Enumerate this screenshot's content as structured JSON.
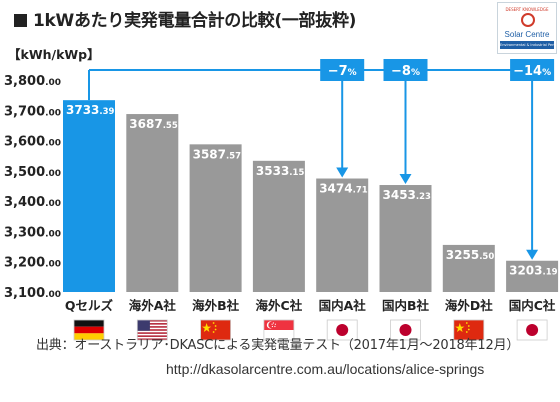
{
  "title": "1kWあたり実発電量合計の比較(一部抜粋)",
  "unit_label": "【kWh/kWp】",
  "logo": {
    "top_text": "DESERT KNOWLEDGE",
    "name": "Solar Centre",
    "sub": "Environmental & Industrial Performance"
  },
  "chart_data": {
    "type": "bar",
    "title": "1kWあたり実発電量合計の比較(一部抜粋)",
    "ylabel": "【kWh/kWp】",
    "xlabel": "",
    "ylim": [
      3100,
      3800
    ],
    "yticks": [
      3100,
      3200,
      3300,
      3400,
      3500,
      3600,
      3700,
      3800
    ],
    "ytick_labels": [
      {
        "int": "3,100",
        "dec": ".00"
      },
      {
        "int": "3,200",
        "dec": ".00"
      },
      {
        "int": "3,300",
        "dec": ".00"
      },
      {
        "int": "3,400",
        "dec": ".00"
      },
      {
        "int": "3,500",
        "dec": ".00"
      },
      {
        "int": "3,600",
        "dec": ".00"
      },
      {
        "int": "3,700",
        "dec": ".00"
      },
      {
        "int": "3,800",
        "dec": ".00"
      }
    ],
    "categories": [
      "Qセルズ",
      "海外A社",
      "海外B社",
      "海外C社",
      "国内A社",
      "国内B社",
      "海外D社",
      "国内C社"
    ],
    "values": [
      3733.39,
      3687.55,
      3587.57,
      3533.15,
      3474.71,
      3453.23,
      3255.5,
      3203.19
    ],
    "value_labels": [
      {
        "int": "3733",
        "dec": ".39"
      },
      {
        "int": "3687",
        "dec": ".55"
      },
      {
        "int": "3587",
        "dec": ".57"
      },
      {
        "int": "3533",
        "dec": ".15"
      },
      {
        "int": "3474",
        "dec": ".71"
      },
      {
        "int": "3453",
        "dec": ".23"
      },
      {
        "int": "3255",
        "dec": ".50"
      },
      {
        "int": "3203",
        "dec": ".19"
      }
    ],
    "flags": [
      "germany",
      "usa",
      "china",
      "singapore",
      "japan",
      "japan",
      "china",
      "japan"
    ],
    "annotations": [
      {
        "target": 4,
        "num": "−7",
        "pct": "%"
      },
      {
        "target": 5,
        "num": "−8",
        "pct": "%"
      },
      {
        "target": 7,
        "num": "−14",
        "pct": "%"
      }
    ],
    "grid": false,
    "colors": {
      "highlight": "#1896e6",
      "bar": "#999999",
      "accent": "#1896e6",
      "flag_border": "#cccccc"
    }
  },
  "source": "出典：オーストラリア･DKASCによる実発電量テスト（2017年1月〜2018年12月）",
  "url": "http://dkasolarcentre.com.au/locations/alice-springs"
}
